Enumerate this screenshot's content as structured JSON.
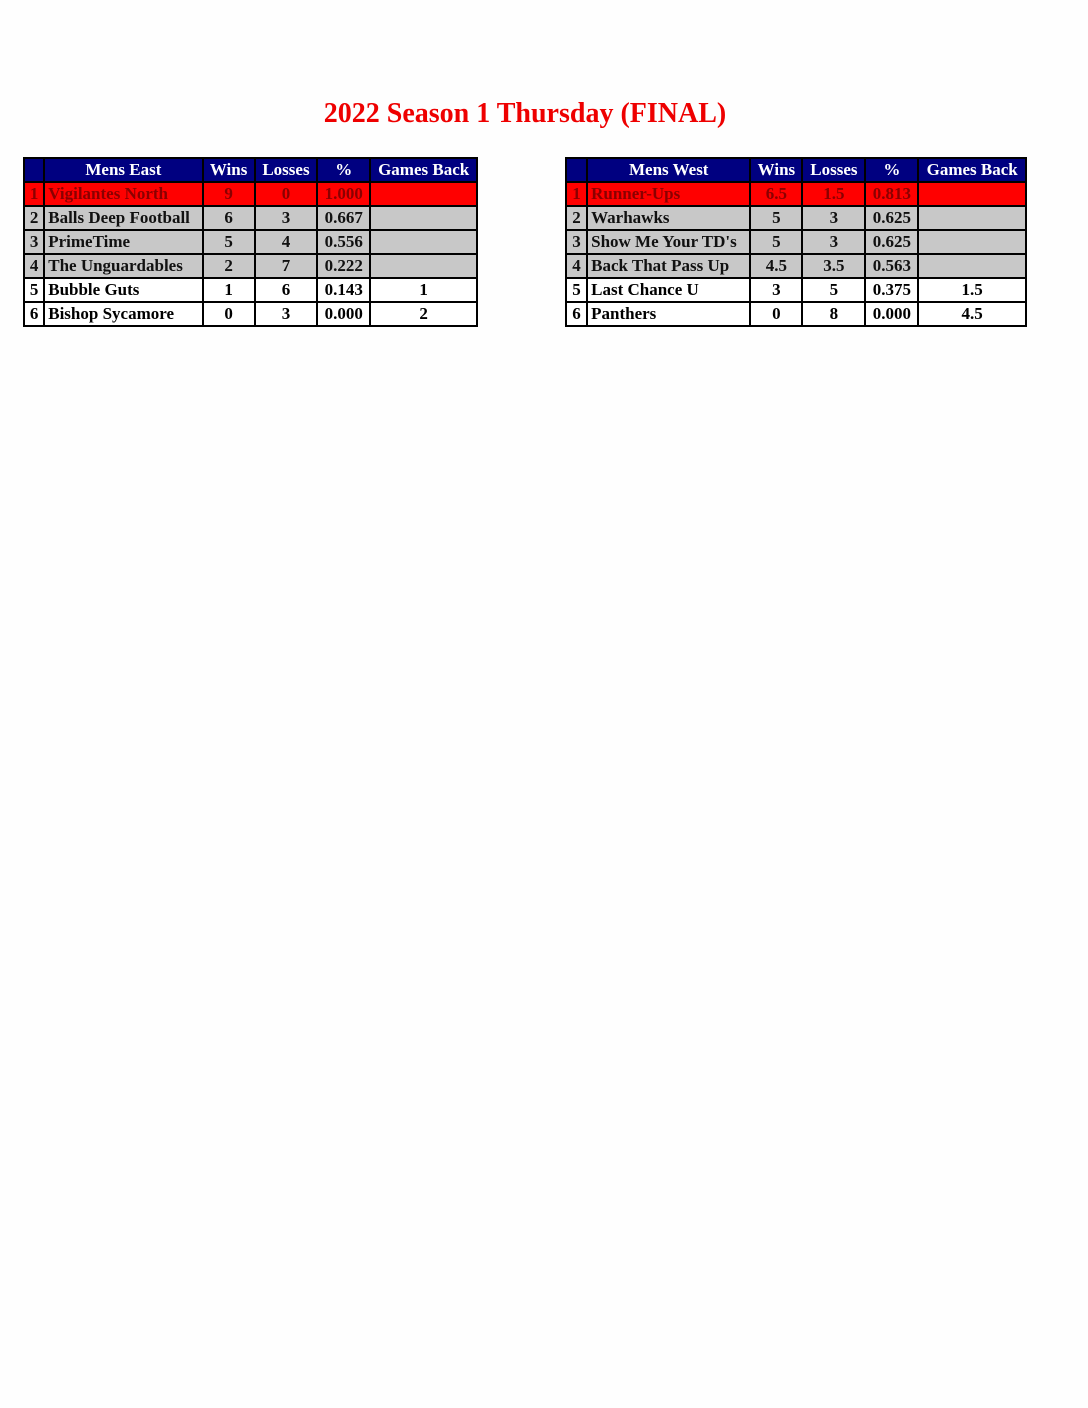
{
  "title": "2022 Season 1 Thursday (FINAL)",
  "colors": {
    "header": "#000080",
    "leader": "#ff0000",
    "title": "#ee0000",
    "playoff": "#c8c8c8"
  },
  "tables": [
    {
      "headers": [
        "",
        "Mens East",
        "Wins",
        "Losses",
        "%",
        "Games Back"
      ],
      "rows": [
        [
          "1",
          "Vigilantes North",
          "9",
          "0",
          "1.000",
          ""
        ],
        [
          "2",
          "Balls Deep Football",
          "6",
          "3",
          "0.667",
          ""
        ],
        [
          "3",
          "PrimeTime",
          "5",
          "4",
          "0.556",
          ""
        ],
        [
          "4",
          "The Unguardables",
          "2",
          "7",
          "0.222",
          ""
        ],
        [
          "5",
          "Bubble Guts",
          "1",
          "6",
          "0.143",
          "1"
        ],
        [
          "6",
          "Bishop Sycamore",
          "0",
          "3",
          "0.000",
          "2"
        ]
      ]
    },
    {
      "headers": [
        "",
        "Mens West",
        "Wins",
        "Losses",
        "%",
        "Games Back"
      ],
      "rows": [
        [
          "1",
          "Runner-Ups",
          "6.5",
          "1.5",
          "0.813",
          ""
        ],
        [
          "2",
          "Warhawks",
          "5",
          "3",
          "0.625",
          ""
        ],
        [
          "3",
          "Show Me Your TD's",
          "5",
          "3",
          "0.625",
          ""
        ],
        [
          "4",
          "Back That Pass Up",
          "4.5",
          "3.5",
          "0.563",
          ""
        ],
        [
          "5",
          "Last Chance U",
          "3",
          "5",
          "0.375",
          "1.5"
        ],
        [
          "6",
          "Panthers",
          "0",
          "8",
          "0.000",
          "4.5"
        ]
      ]
    }
  ]
}
